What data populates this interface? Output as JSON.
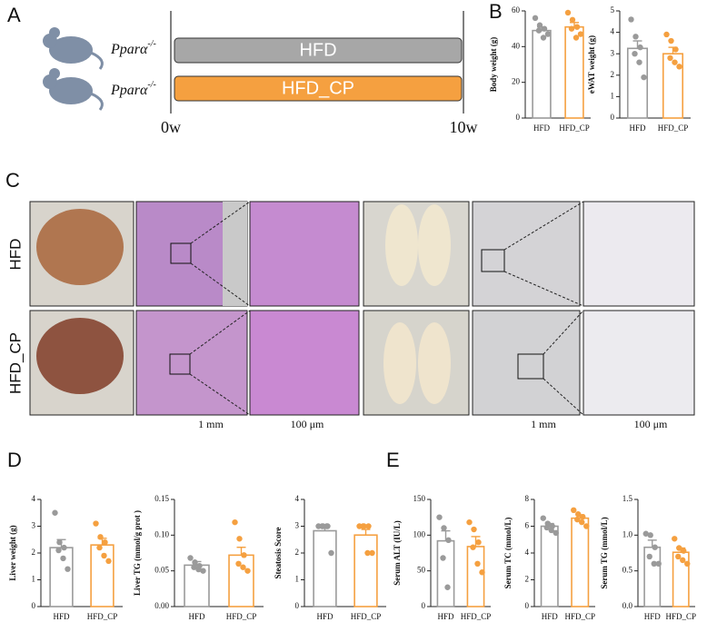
{
  "panels": [
    "A",
    "B",
    "C",
    "D",
    "E"
  ],
  "timeline": {
    "groups": [
      {
        "genotype": "Pparα",
        "genotype_sup": "-/-",
        "label": "HFD"
      },
      {
        "genotype": "Pparα",
        "genotype_sup": "-/-",
        "label": "HFD_CP"
      }
    ],
    "start": "0w",
    "end": "10w"
  },
  "histology": {
    "rows": [
      "HFD",
      "HFD_CP"
    ],
    "scales": [
      "1 mm",
      "100 μm",
      "1 mm",
      "100 μm"
    ]
  },
  "chart_data": [
    {
      "type": "bar",
      "ylabel": "Body weight (g)",
      "categories": [
        "HFD",
        "HFD_CP"
      ],
      "colors": [
        "#9a9a9a",
        "#f5a040"
      ],
      "values": [
        49,
        51
      ],
      "errors": [
        2,
        2.5
      ],
      "points": [
        [
          56,
          52,
          50,
          49,
          45,
          47
        ],
        [
          59,
          55,
          51,
          50,
          45,
          47
        ]
      ],
      "ylim": [
        0,
        60
      ],
      "yticks": [
        0,
        20,
        40,
        60
      ]
    },
    {
      "type": "bar",
      "ylabel": "eWAT weight (g)",
      "categories": [
        "HFD",
        "HFD_CP"
      ],
      "colors": [
        "#9a9a9a",
        "#f5a040"
      ],
      "values": [
        3.25,
        3.0
      ],
      "errors": [
        0.35,
        0.3
      ],
      "points": [
        [
          4.6,
          3.8,
          3.3,
          3.0,
          2.6,
          1.9
        ],
        [
          3.9,
          3.6,
          3.2,
          2.8,
          2.6,
          2.4
        ]
      ],
      "ylim": [
        0,
        5
      ],
      "yticks": [
        0,
        1,
        2,
        3,
        4,
        5
      ]
    },
    {
      "type": "bar",
      "ylabel": "Liver weight (g)",
      "categories": [
        "HFD",
        "HFD_CP"
      ],
      "colors": [
        "#9a9a9a",
        "#f5a040"
      ],
      "values": [
        2.2,
        2.3
      ],
      "errors": [
        0.3,
        0.25
      ],
      "points": [
        [
          3.5,
          2.4,
          2.2,
          2.1,
          1.8,
          1.4
        ],
        [
          3.1,
          2.6,
          2.4,
          2.2,
          1.9,
          1.7
        ]
      ],
      "ylim": [
        0,
        4
      ],
      "yticks": [
        0,
        1,
        2,
        3,
        4
      ]
    },
    {
      "type": "bar",
      "ylabel": "Liver TG (mmol/g prot )",
      "categories": [
        "HFD",
        "HFD_CP"
      ],
      "colors": [
        "#9a9a9a",
        "#f5a040"
      ],
      "values": [
        0.058,
        0.072
      ],
      "errors": [
        0.005,
        0.011
      ],
      "points": [
        [
          0.068,
          0.062,
          0.057,
          0.055,
          0.052,
          0.05
        ],
        [
          0.118,
          0.095,
          0.072,
          0.06,
          0.055,
          0.05
        ]
      ],
      "ylim": [
        0,
        0.15
      ],
      "yticks": [
        {
          "value": 0,
          "label": "0.00"
        },
        {
          "value": 0.05,
          "label": "0.05"
        },
        {
          "value": 0.1,
          "label": "0.10"
        },
        {
          "value": 0.15,
          "label": "0.15"
        }
      ]
    },
    {
      "type": "bar",
      "ylabel": "Steatosis Score",
      "categories": [
        "HFD",
        "HFD_CP"
      ],
      "colors": [
        "#9a9a9a",
        "#f5a040"
      ],
      "values": [
        2.83,
        2.67
      ],
      "errors": [
        0.17,
        0.21
      ],
      "points": [
        [
          3,
          3,
          3,
          3,
          3,
          2
        ],
        [
          3,
          3,
          3,
          3,
          2,
          2
        ]
      ],
      "ylim": [
        0,
        4
      ],
      "yticks": [
        0,
        1,
        2,
        3,
        4
      ]
    },
    {
      "type": "bar",
      "ylabel": "Serum ALT (IU/L)",
      "categories": [
        "HFD",
        "HFD_CP"
      ],
      "colors": [
        "#9a9a9a",
        "#f5a040"
      ],
      "values": [
        92,
        84
      ],
      "errors": [
        14,
        14
      ],
      "points": [
        [
          125,
          110,
          93,
          68,
          27
        ],
        [
          118,
          108,
          90,
          83,
          60,
          48
        ]
      ],
      "ylim": [
        0,
        150
      ],
      "yticks": [
        0,
        50,
        100,
        150
      ]
    },
    {
      "type": "bar",
      "ylabel": "Serum TC (mmol/L)",
      "categories": [
        "HFD",
        "HFD_CP"
      ],
      "colors": [
        "#9a9a9a",
        "#f5a040"
      ],
      "values": [
        6.0,
        6.6
      ],
      "errors": [
        0.2,
        0.25
      ],
      "points": [
        [
          6.6,
          6.2,
          6.0,
          5.9,
          5.7,
          5.5
        ],
        [
          7.2,
          6.9,
          6.7,
          6.5,
          6.3,
          6.0
        ]
      ],
      "ylim": [
        0,
        8
      ],
      "yticks": [
        0,
        2,
        4,
        6,
        8
      ]
    },
    {
      "type": "bar",
      "ylabel": "Serum TG (mmol/L)",
      "categories": [
        "HFD",
        "HFD_CP"
      ],
      "colors": [
        "#9a9a9a",
        "#f5a040"
      ],
      "values": [
        0.83,
        0.76
      ],
      "errors": [
        0.1,
        0.06
      ],
      "points": [
        [
          1.02,
          1.0,
          0.83,
          0.7,
          0.6,
          0.6
        ],
        [
          0.95,
          0.82,
          0.78,
          0.7,
          0.65,
          0.6
        ]
      ],
      "ylim": [
        0,
        1.5
      ],
      "yticks": [
        {
          "value": 0,
          "label": "0.0"
        },
        0.5,
        {
          "value": 1,
          "label": "1.0"
        },
        1.5
      ]
    }
  ]
}
